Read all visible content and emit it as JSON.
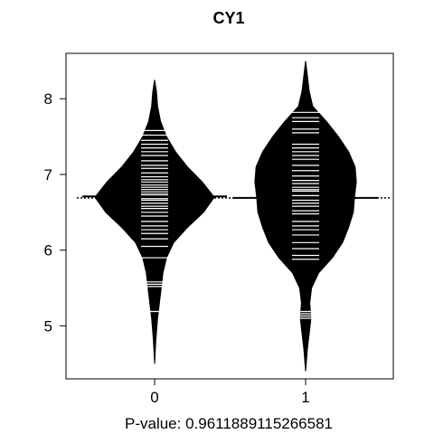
{
  "chart_data": {
    "type": "beanplot",
    "title": "CY1",
    "xlabel": "P-value: 0.9611889115266581",
    "ylabel": "",
    "categories": [
      "0",
      "1"
    ],
    "ylim": [
      4.3,
      8.6
    ],
    "y_ticks": [
      "5",
      "6",
      "7",
      "8"
    ],
    "overall_mean": 6.69,
    "grid": false,
    "series": [
      {
        "category": "0",
        "mean": 6.71,
        "density_profile": [
          [
            4.5,
            0.0
          ],
          [
            4.8,
            0.02
          ],
          [
            5.1,
            0.05
          ],
          [
            5.3,
            0.08
          ],
          [
            5.5,
            0.11
          ],
          [
            5.7,
            0.14
          ],
          [
            5.9,
            0.2
          ],
          [
            6.1,
            0.32
          ],
          [
            6.3,
            0.55
          ],
          [
            6.5,
            0.82
          ],
          [
            6.7,
            1.0
          ],
          [
            6.9,
            0.8
          ],
          [
            7.1,
            0.55
          ],
          [
            7.3,
            0.35
          ],
          [
            7.5,
            0.2
          ],
          [
            7.7,
            0.1
          ],
          [
            7.9,
            0.05
          ],
          [
            8.1,
            0.03
          ],
          [
            8.25,
            0.0
          ]
        ],
        "observations": [
          5.19,
          5.52,
          5.55,
          5.58,
          5.9,
          6.05,
          6.15,
          6.22,
          6.27,
          6.32,
          6.38,
          6.45,
          6.5,
          6.55,
          6.58,
          6.62,
          6.66,
          6.68,
          6.72,
          6.74,
          6.77,
          6.8,
          6.83,
          6.86,
          6.9,
          6.93,
          6.97,
          7.02,
          7.08,
          7.12,
          7.18,
          7.25,
          7.3,
          7.35,
          7.4,
          7.45,
          7.52,
          7.58
        ]
      },
      {
        "category": "1",
        "mean": 6.69,
        "density_profile": [
          [
            4.4,
            0.0
          ],
          [
            4.7,
            0.03
          ],
          [
            4.9,
            0.06
          ],
          [
            5.1,
            0.09
          ],
          [
            5.3,
            0.07
          ],
          [
            5.5,
            0.1
          ],
          [
            5.7,
            0.22
          ],
          [
            5.9,
            0.45
          ],
          [
            6.1,
            0.62
          ],
          [
            6.3,
            0.72
          ],
          [
            6.5,
            0.8
          ],
          [
            6.7,
            0.82
          ],
          [
            6.9,
            0.85
          ],
          [
            7.1,
            0.83
          ],
          [
            7.3,
            0.72
          ],
          [
            7.5,
            0.55
          ],
          [
            7.7,
            0.35
          ],
          [
            7.9,
            0.12
          ],
          [
            8.1,
            0.06
          ],
          [
            8.3,
            0.03
          ],
          [
            8.5,
            0.0
          ]
        ],
        "observations": [
          5.1,
          5.13,
          5.16,
          5.19,
          5.88,
          5.93,
          6.02,
          6.1,
          6.2,
          6.27,
          6.32,
          6.38,
          6.48,
          6.52,
          6.58,
          6.62,
          6.66,
          6.72,
          6.78,
          6.8,
          6.83,
          6.88,
          6.92,
          6.98,
          7.05,
          7.12,
          7.2,
          7.25,
          7.3,
          7.35,
          7.4,
          7.55,
          7.6,
          7.7,
          7.75,
          7.82
        ]
      }
    ]
  }
}
